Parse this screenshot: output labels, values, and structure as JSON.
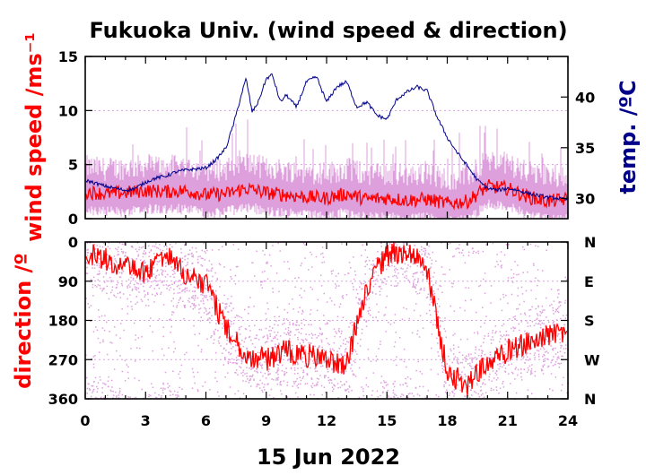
{
  "title": "Fukuoka Univ. (wind speed & direction)",
  "date_label": "15 Jun 2022",
  "colors": {
    "wind_gust": "#dda0dd",
    "wind_mean": "#ff0000",
    "temperature": "#00008b",
    "dir_raw": "#dda0dd",
    "dir_mean": "#ff0000"
  },
  "chart_data": [
    {
      "type": "line",
      "panel": "top",
      "xlabel": "15 Jun 2022",
      "ylabel": "wind speed /ms⁻¹",
      "ylabel2": "temp. /ºC",
      "xlim": [
        0,
        24
      ],
      "ylim": [
        0,
        15
      ],
      "ylim2": [
        28,
        44
      ],
      "xticks": [
        "0",
        "3",
        "6",
        "9",
        "12",
        "15",
        "18",
        "21",
        "24"
      ],
      "yticks": [
        "0",
        "5",
        "10",
        "15"
      ],
      "yticks2": [
        "30",
        "35",
        "40"
      ],
      "series": [
        {
          "axis": "left",
          "color": "#ff0000",
          "x": [
            0,
            1,
            2,
            3,
            4,
            5,
            6,
            7,
            8,
            9,
            10,
            11,
            12,
            13,
            14,
            15,
            16,
            17,
            18,
            19,
            20,
            21,
            22,
            23,
            24
          ],
          "y": [
            2.5,
            2.3,
            2.4,
            2.6,
            2.5,
            2.6,
            2.2,
            2.3,
            2.8,
            2.4,
            2.2,
            2.0,
            1.9,
            2.3,
            1.8,
            1.9,
            1.7,
            1.8,
            1.4,
            1.6,
            3.0,
            2.8,
            2.0,
            1.6,
            1.8
          ]
        },
        {
          "axis": "right",
          "color": "#00008b",
          "x": [
            0,
            0.5,
            1,
            1.5,
            2,
            2.5,
            3,
            3.5,
            4,
            4.5,
            5,
            5.5,
            6,
            6.5,
            7,
            7.4,
            7.8,
            8,
            8.3,
            8.6,
            9,
            9.3,
            9.7,
            10,
            10.5,
            11,
            11.5,
            12,
            12.5,
            13,
            13.5,
            14,
            14.5,
            15,
            15.5,
            16,
            16.5,
            17,
            17.5,
            18,
            18.5,
            19,
            19.5,
            20,
            20.5,
            21,
            21.5,
            22,
            22.5,
            23,
            23.5,
            24
          ],
          "y": [
            31.8,
            31.5,
            31.2,
            31.0,
            30.8,
            31.0,
            31.6,
            32.0,
            32.2,
            32.6,
            32.8,
            32.9,
            33.0,
            33.8,
            35.0,
            37.5,
            40.5,
            41.8,
            38.5,
            39.5,
            41.8,
            42.2,
            39.5,
            40.2,
            39.0,
            41.5,
            42.0,
            39.5,
            41.0,
            41.5,
            39.0,
            39.5,
            38.2,
            37.8,
            39.8,
            40.5,
            41.0,
            40.6,
            38.0,
            36.0,
            34.5,
            33.2,
            31.8,
            31.0,
            30.8,
            31.0,
            30.8,
            30.5,
            30.3,
            30.1,
            30.0,
            29.8
          ]
        }
      ]
    },
    {
      "type": "scatter",
      "panel": "bottom",
      "xlabel": "15 Jun 2022",
      "ylabel": "direction /º",
      "xlim": [
        0,
        24
      ],
      "ylim": [
        360,
        0
      ],
      "xticks": [
        "0",
        "3",
        "6",
        "9",
        "12",
        "15",
        "18",
        "21",
        "24"
      ],
      "yticks": [
        "0",
        "90",
        "180",
        "270",
        "360"
      ],
      "yticks2": [
        "N",
        "E",
        "S",
        "W",
        "N"
      ],
      "series": [
        {
          "color": "#ff0000",
          "x": [
            0,
            1,
            2,
            3,
            4,
            5,
            6,
            7,
            8,
            9,
            10,
            11,
            12,
            13,
            14,
            15,
            16,
            17,
            18,
            19,
            20,
            21,
            22,
            23,
            24
          ],
          "y": [
            20,
            40,
            60,
            70,
            30,
            80,
            95,
            200,
            260,
            270,
            250,
            260,
            270,
            280,
            100,
            30,
            20,
            60,
            300,
            330,
            280,
            250,
            230,
            215,
            200
          ]
        }
      ]
    }
  ]
}
